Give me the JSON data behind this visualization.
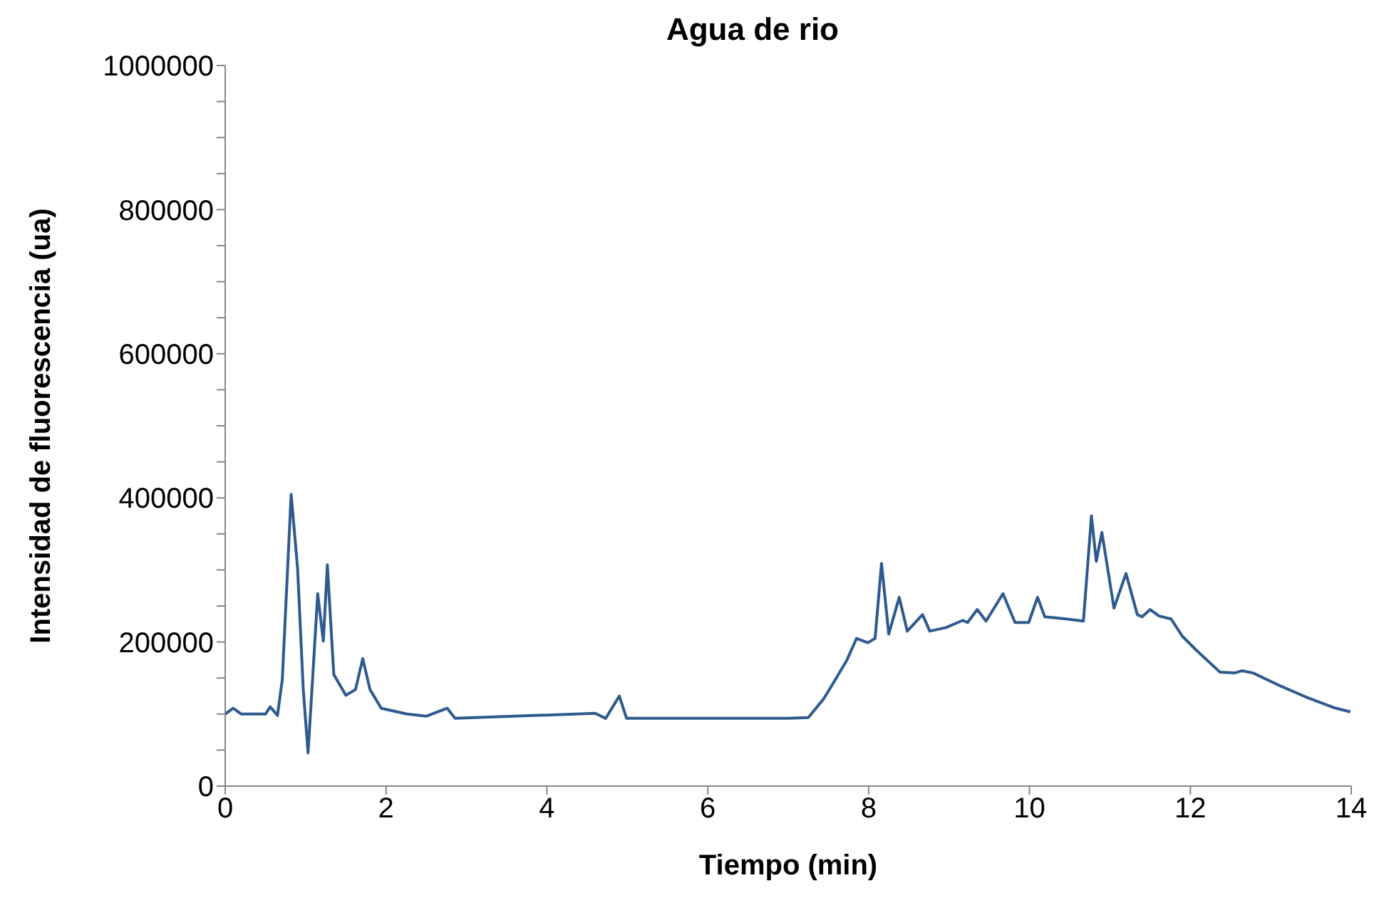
{
  "chart_data": {
    "type": "line",
    "title": "Agua de rio",
    "xlabel": "Tiempo (min)",
    "ylabel": "Intensidad de fluorescencia (ua)",
    "grid": false,
    "legend": false,
    "marker": "none",
    "line_style": "solid",
    "xlim": [
      0,
      14
    ],
    "xticks": [
      0,
      2,
      4,
      6,
      8,
      10,
      12,
      14
    ],
    "ylim": [
      0,
      1000000
    ],
    "yticks": [
      0,
      {
        "value": 50000,
        "label": null
      },
      {
        "value": 100000,
        "label": null
      },
      {
        "value": 150000,
        "label": null
      },
      200000,
      {
        "value": 250000,
        "label": null
      },
      {
        "value": 300000,
        "label": null
      },
      {
        "value": 350000,
        "label": null
      },
      400000,
      {
        "value": 450000,
        "label": null
      },
      {
        "value": 500000,
        "label": null
      },
      {
        "value": 550000,
        "label": null
      },
      600000,
      {
        "value": 650000,
        "label": null
      },
      {
        "value": 700000,
        "label": null
      },
      {
        "value": 750000,
        "label": null
      },
      800000,
      {
        "value": 850000,
        "label": null
      },
      {
        "value": 900000,
        "label": null
      },
      {
        "value": 950000,
        "label": null
      },
      1000000
    ],
    "x": [
      0,
      0.1,
      0.2,
      0.5,
      0.56,
      0.65,
      0.71,
      0.82,
      0.9,
      0.97,
      1.03,
      1.09,
      1.15,
      1.22,
      1.27,
      1.35,
      1.5,
      1.62,
      1.71,
      1.8,
      1.94,
      2.26,
      2.5,
      2.76,
      2.86,
      4.6,
      4.73,
      4.9,
      4.99,
      7.0,
      7.25,
      7.44,
      7.55,
      7.73,
      7.85,
      7.99,
      8.08,
      8.16,
      8.25,
      8.38,
      8.48,
      8.67,
      8.76,
      8.96,
      9.17,
      9.23,
      9.35,
      9.46,
      9.67,
      9.82,
      9.99,
      10.1,
      10.19,
      10.46,
      10.67,
      10.77,
      10.83,
      10.9,
      11.05,
      11.2,
      11.34,
      11.4,
      11.5,
      11.61,
      11.76,
      11.9,
      12.08,
      12.37,
      12.55,
      12.64,
      12.78,
      13.08,
      13.43,
      13.78,
      13.99
    ],
    "series": [
      {
        "color": "#2e5a8e",
        "values": [
          100000,
          108000,
          100000,
          100000,
          110000,
          98000,
          148000,
          405000,
          302000,
          135000,
          46000,
          155000,
          267000,
          201000,
          307000,
          155000,
          126000,
          134000,
          177000,
          134000,
          108000,
          100000,
          97000,
          108000,
          94000,
          101000,
          94000,
          125000,
          94000,
          94000,
          95000,
          121000,
          141000,
          175000,
          205000,
          199000,
          205000,
          309000,
          211000,
          262000,
          215000,
          238000,
          215000,
          220000,
          230000,
          227000,
          245000,
          229000,
          267000,
          227000,
          227000,
          262000,
          235000,
          232000,
          229000,
          375000,
          312000,
          352000,
          247000,
          295000,
          238000,
          235000,
          245000,
          236000,
          232000,
          208000,
          188000,
          158000,
          157000,
          160000,
          157000,
          141000,
          124000,
          109000,
          103000
        ]
      }
    ]
  }
}
